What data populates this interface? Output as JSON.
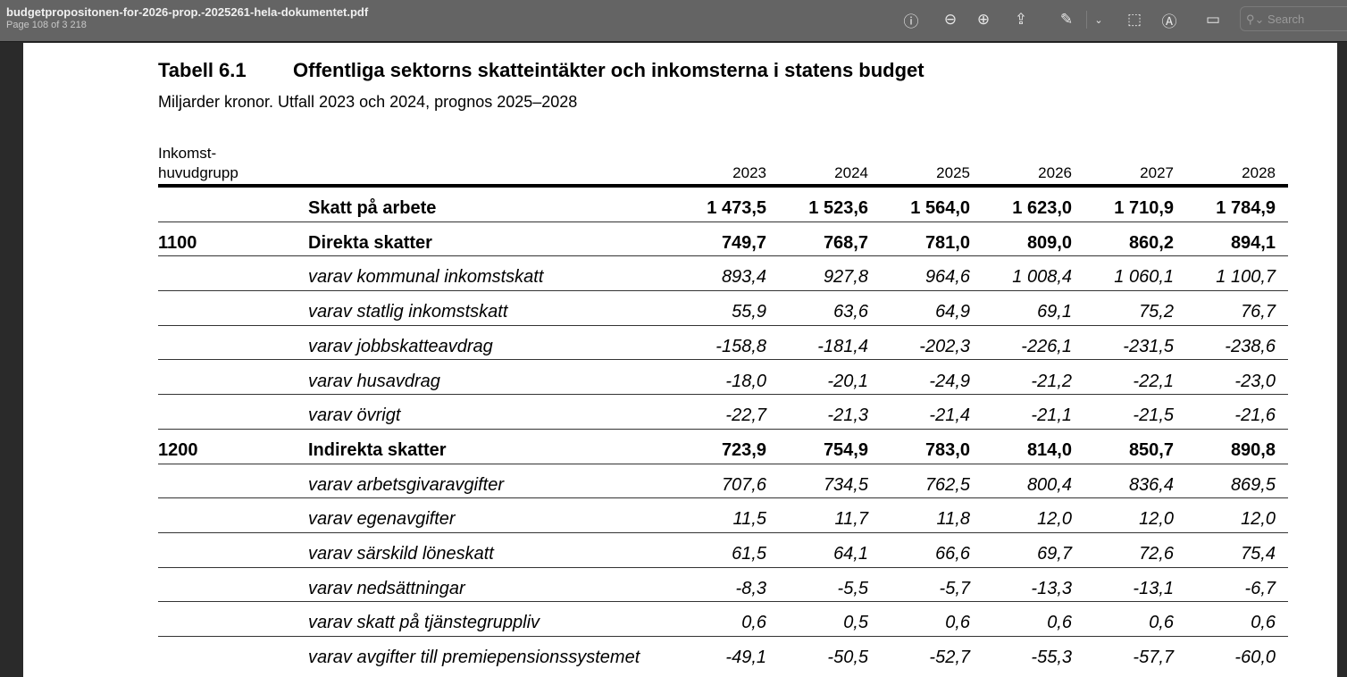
{
  "window": {
    "filename": "budgetpropositonen-for-2026-prop.-2025261-hela-dokumentet.pdf",
    "page_info": "Page 108 of 3 218",
    "search_placeholder": "Search"
  },
  "toolbar_icons": [
    "info-icon",
    "zoom-out-icon",
    "zoom-in-icon",
    "share-icon",
    "highlight-pen-icon",
    "chevron-down-icon",
    "rotate-icon",
    "markup-icon",
    "signature-icon"
  ],
  "table": {
    "number": "Tabell 6.1",
    "title": "Offentliga sektorns skatteintäkter och inkomsterna i statens budget",
    "subtitle": "Miljarder kronor. Utfall 2023 och 2024, prognos 2025–2028",
    "group_header_1": "Inkomst-",
    "group_header_2": "huvudgrupp",
    "years": [
      "2023",
      "2024",
      "2025",
      "2026",
      "2027",
      "2028"
    ],
    "rows": [
      {
        "code": "",
        "label": "Skatt på arbete",
        "style": "b",
        "values": [
          "1 473,5",
          "1 523,6",
          "1 564,0",
          "1 623,0",
          "1 710,9",
          "1 784,9"
        ]
      },
      {
        "code": "1100",
        "label": "Direkta skatter",
        "style": "b",
        "values": [
          "749,7",
          "768,7",
          "781,0",
          "809,0",
          "860,2",
          "894,1"
        ]
      },
      {
        "code": "",
        "label": "varav kommunal inkomstskatt",
        "style": "i",
        "values": [
          "893,4",
          "927,8",
          "964,6",
          "1 008,4",
          "1 060,1",
          "1 100,7"
        ]
      },
      {
        "code": "",
        "label": "varav statlig inkomstskatt",
        "style": "i",
        "values": [
          "55,9",
          "63,6",
          "64,9",
          "69,1",
          "75,2",
          "76,7"
        ]
      },
      {
        "code": "",
        "label": "varav jobbskatteavdrag",
        "style": "i",
        "values": [
          "-158,8",
          "-181,4",
          "-202,3",
          "-226,1",
          "-231,5",
          "-238,6"
        ]
      },
      {
        "code": "",
        "label": "varav husavdrag",
        "style": "i",
        "values": [
          "-18,0",
          "-20,1",
          "-24,9",
          "-21,2",
          "-22,1",
          "-23,0"
        ]
      },
      {
        "code": "",
        "label": "varav övrigt",
        "style": "i",
        "values": [
          "-22,7",
          "-21,3",
          "-21,4",
          "-21,1",
          "-21,5",
          "-21,6"
        ]
      },
      {
        "code": "1200",
        "label": "Indirekta skatter",
        "style": "b",
        "values": [
          "723,9",
          "754,9",
          "783,0",
          "814,0",
          "850,7",
          "890,8"
        ]
      },
      {
        "code": "",
        "label": "varav arbetsgivaravgifter",
        "style": "i",
        "values": [
          "707,6",
          "734,5",
          "762,5",
          "800,4",
          "836,4",
          "869,5"
        ]
      },
      {
        "code": "",
        "label": "varav egenavgifter",
        "style": "i",
        "values": [
          "11,5",
          "11,7",
          "11,8",
          "12,0",
          "12,0",
          "12,0"
        ]
      },
      {
        "code": "",
        "label": "varav särskild löneskatt",
        "style": "i",
        "values": [
          "61,5",
          "64,1",
          "66,6",
          "69,7",
          "72,6",
          "75,4"
        ]
      },
      {
        "code": "",
        "label": "varav nedsättningar",
        "style": "i",
        "values": [
          "-8,3",
          "-5,5",
          "-5,7",
          "-13,3",
          "-13,1",
          "-6,7"
        ]
      },
      {
        "code": "",
        "label": "varav skatt på tjänstegruppliv",
        "style": "i",
        "values": [
          "0,6",
          "0,5",
          "0,6",
          "0,6",
          "0,6",
          "0,6"
        ]
      },
      {
        "code": "",
        "label": "varav avgifter till premiepensionssystemet",
        "style": "i",
        "values": [
          "-49,1",
          "-50,5",
          "-52,7",
          "-55,3",
          "-57,7",
          "-60,0"
        ]
      }
    ]
  }
}
